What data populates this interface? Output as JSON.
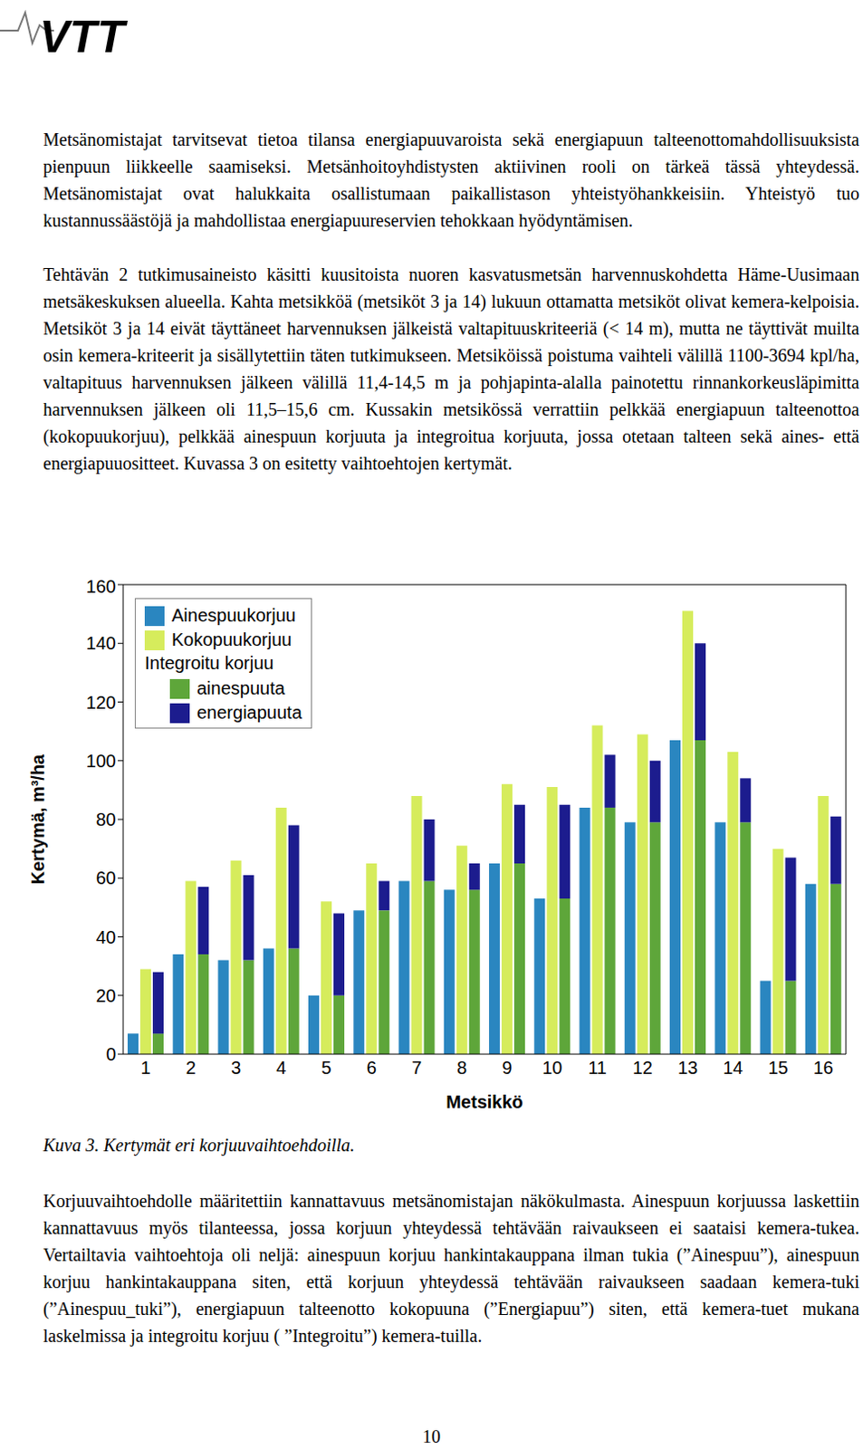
{
  "header": {
    "logo": "VTT"
  },
  "paragraphs": [
    "Metsänomistajat tarvitsevat tietoa tilansa energiapuuvaroista sekä energiapuun talteenottomahdollisuuksista pienpuun liikkeelle saamiseksi. Metsänhoitoyhdistysten aktiivinen rooli on tärkeä tässä yhteydessä. Metsänomistajat ovat halukkaita osallistumaan paikallistason yhteistyöhankkeisiin. Yhteistyö tuo kustannussäästöjä ja mahdollistaa energiapuureservien tehokkaan hyödyntämisen.",
    "Tehtävän 2 tutkimusaineisto käsitti kuusitoista nuoren kasvatusmetsän harvennuskohdetta Häme-Uusimaan metsäkeskuksen alueella. Kahta metsikköä (metsiköt 3 ja 14) lukuun ottamatta metsiköt olivat kemera-kelpoisia. Metsiköt 3 ja 14 eivät täyttäneet harvennuksen jälkeistä valtapituuskriteeriä (< 14 m), mutta ne täyttivät muilta osin kemera-kriteerit ja sisällytettiin täten tutkimukseen. Metsiköissä poistuma vaihteli välillä 1100-3694 kpl/ha, valtapituus harvennuksen jälkeen välillä 11,4-14,5 m ja pohjapinta-alalla painotettu rinnankorkeusläpimitta harvennuksen jälkeen oli 11,5–15,6 cm. Kussakin metsikössä verrattiin pelkkää energiapuun talteenottoa (kokopuukorjuu), pelkkää ainespuun korjuuta ja integroitua korjuuta, jossa otetaan talteen sekä aines- että energiapuuositteet. Kuvassa 3 on esitetty vaihtoehtojen kertymät."
  ],
  "chart_data": {
    "type": "bar",
    "x_label": "Metsikkö",
    "y_label": "Kertymä, m³/ha",
    "categories": [
      "1",
      "2",
      "3",
      "4",
      "5",
      "6",
      "7",
      "8",
      "9",
      "10",
      "11",
      "12",
      "13",
      "14",
      "15",
      "16"
    ],
    "series": [
      {
        "name": "Ainespuukorjuu",
        "color": "#2a86c0",
        "values": [
          7,
          34,
          32,
          36,
          20,
          49,
          59,
          56,
          65,
          53,
          84,
          79,
          107,
          79,
          25,
          58
        ]
      },
      {
        "name": "Kokopuukorjuu",
        "color": "#d6ec5c",
        "values": [
          29,
          59,
          66,
          84,
          52,
          65,
          88,
          71,
          92,
          91,
          112,
          109,
          151,
          103,
          70,
          88
        ]
      },
      {
        "name": "Integroitu korjuu",
        "stacked": true,
        "series": [
          {
            "name": "ainespuuta",
            "color": "#5ea63a",
            "values": [
              7,
              34,
              32,
              36,
              20,
              49,
              59,
              56,
              65,
              53,
              84,
              79,
              107,
              79,
              25,
              58
            ]
          },
          {
            "name": "energiapuuta",
            "color": "#1c1c8e",
            "values": [
              21,
              23,
              29,
              42,
              28,
              10,
              21,
              9,
              20,
              32,
              18,
              21,
              33,
              15,
              42,
              23
            ]
          }
        ]
      }
    ],
    "ylim": [
      0,
      160
    ],
    "yticks": [
      0,
      20,
      40,
      60,
      80,
      100,
      120,
      140,
      160
    ],
    "grid": false,
    "legend": "top-left"
  },
  "caption": "Kuva 3. Kertymät eri korjuuvaihtoehdoilla.",
  "paragraphs_after": [
    "Korjuuvaihtoehdolle määritettiin kannattavuus metsänomistajan näkökulmasta. Ainespuun korjuussa laskettiin kannattavuus myös tilanteessa, jossa korjuun yhteydessä tehtävään raivaukseen ei saataisi kemera-tukea. Vertailtavia vaihtoehtoja oli neljä: ainespuun korjuu hankintakauppana ilman tukia (”Ainespuu”), ainespuun korjuu hankintakauppana siten, että korjuun yhteydessä tehtävään raivaukseen saadaan kemera-tuki (”Ainespuu_tuki”), energiapuun talteenotto kokopuuna (”Energiapuu”) siten, että kemera-tuet mukana laskelmissa ja integroitu korjuu ( ”Integroitu”) kemera-tuilla."
  ],
  "page_number": "10"
}
